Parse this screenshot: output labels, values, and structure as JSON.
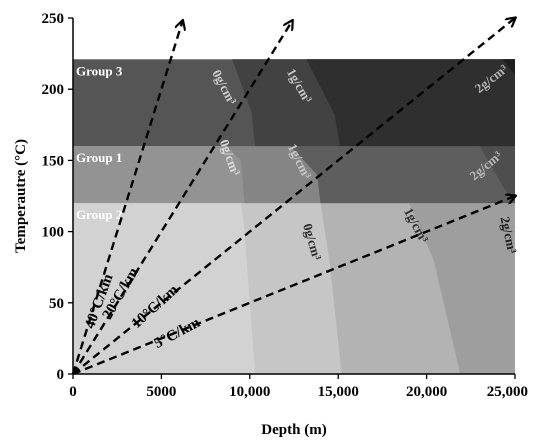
{
  "chart_data": {
    "type": "line",
    "xlabel": "Depth (m)",
    "ylabel": "Temperautre (°C)",
    "xlim": [
      0,
      25000
    ],
    "ylim": [
      0,
      250
    ],
    "x_ticks": [
      {
        "value": 0,
        "label": "0"
      },
      {
        "value": 5000,
        "label": "5000"
      },
      {
        "value": 10000,
        "label": "10,000"
      },
      {
        "value": 15000,
        "label": "15,000"
      },
      {
        "value": 20000,
        "label": "20,000"
      },
      {
        "value": 25000,
        "label": "25,000"
      }
    ],
    "y_ticks": [
      {
        "value": 0,
        "label": "0"
      },
      {
        "value": 50,
        "label": "50"
      },
      {
        "value": 100,
        "label": "100"
      },
      {
        "value": 150,
        "label": "150"
      },
      {
        "value": 200,
        "label": "200"
      },
      {
        "value": 250,
        "label": "250"
      }
    ],
    "groups": [
      {
        "label": "Group 2",
        "t_min": 0,
        "t_max": 120,
        "base_color": "#d2d2d2",
        "zones": [
          {
            "label": "0g/cm³",
            "color": "#c6c6c6",
            "label_color": "#2a2a2a",
            "label_at": [
              13300,
              92
            ],
            "label_angle": 74,
            "boundary": [
              [
                9500,
                120
              ],
              [
                9700,
                100
              ],
              [
                10300,
                0
              ]
            ]
          },
          {
            "label": "1g/cm³",
            "color": "#b3b3b3",
            "label_color": "#2a2a2a",
            "label_at": [
              19200,
              103
            ],
            "label_angle": 62,
            "boundary": [
              [
                14000,
                120
              ],
              [
                14500,
                80
              ],
              [
                15200,
                0
              ]
            ]
          },
          {
            "label": "2g/cm³",
            "color": "#9e9e9e",
            "label_color": "#1a1a1a",
            "label_at": [
              24400,
              97
            ],
            "label_angle": 78,
            "boundary": [
              [
                19000,
                120
              ],
              [
                20400,
                80
              ],
              [
                21900,
                0
              ]
            ]
          }
        ]
      },
      {
        "label": "Group 1",
        "t_min": 120,
        "t_max": 160,
        "base_color": "#939393",
        "zones": [
          {
            "label": "0g/cm³",
            "color": "#858585",
            "label_color": "#dddddd",
            "label_at": [
              8650,
              151
            ],
            "label_angle": 70,
            "boundary": [
              [
                8700,
                160
              ],
              [
                9500,
                150
              ],
              [
                9700,
                120
              ]
            ]
          },
          {
            "label": "1g/cm³",
            "color": "#5e5e5e",
            "label_color": "#c8c8c8",
            "label_at": [
              12600,
              148
            ],
            "label_angle": 64,
            "boundary": [
              [
                12300,
                160
              ],
              [
                13800,
                140
              ],
              [
                14000,
                120
              ]
            ]
          },
          {
            "label": "2g/cm³",
            "color": "#4e4e4e",
            "label_color": "#bbbbbb",
            "label_at": [
              23500,
              144
            ],
            "label_angle": -40,
            "boundary": [
              [
                23000,
                160
              ],
              [
                24400,
                130
              ],
              [
                25000,
                120
              ]
            ]
          }
        ]
      },
      {
        "label": "Group 3",
        "t_min": 160,
        "t_max": 221,
        "base_color": "#555555",
        "zones": [
          {
            "label": "0g/cm³",
            "color": "#424242",
            "label_color": "#cfcfcf",
            "label_at": [
              8350,
              200
            ],
            "label_angle": 62,
            "boundary": [
              [
                9000,
                221
              ],
              [
                10100,
                184
              ],
              [
                10300,
                160
              ]
            ]
          },
          {
            "label": "1g/cm³",
            "color": "#2f2f2f",
            "label_color": "#c8c8c8",
            "label_at": [
              12600,
              201
            ],
            "label_angle": 60,
            "boundary": [
              [
                13200,
                221
              ],
              [
                14800,
                182
              ],
              [
                15100,
                160
              ]
            ]
          },
          {
            "label": "2g/cm³",
            "color": "#1e1e1e",
            "label_color": "#b5b5b5",
            "label_at": [
              23800,
              205
            ],
            "label_angle": -38,
            "boundary": [
              [
                24300,
                221
              ],
              [
                25000,
                210
              ]
            ]
          }
        ]
      }
    ],
    "series": [
      {
        "name": "40°C/km",
        "type": "dashed",
        "x": [
          0,
          6200
        ],
        "y": [
          0,
          248
        ],
        "label_at": [
          1700,
          50
        ],
        "label_angle": -70
      },
      {
        "name": "20°C/km",
        "type": "dashed",
        "x": [
          0,
          12400
        ],
        "y": [
          0,
          248
        ],
        "label_at": [
          2900,
          55
        ],
        "label_angle": -60
      },
      {
        "name": "10°C/km",
        "type": "dashed",
        "x": [
          0,
          25000
        ],
        "y": [
          0,
          250
        ],
        "label_at": [
          4800,
          45
        ],
        "label_angle": -42
      },
      {
        "name": "5°C/km",
        "type": "dashed",
        "x": [
          0,
          25000
        ],
        "y": [
          0,
          125
        ],
        "label_at": [
          6000,
          26
        ],
        "label_angle": -28
      }
    ]
  }
}
